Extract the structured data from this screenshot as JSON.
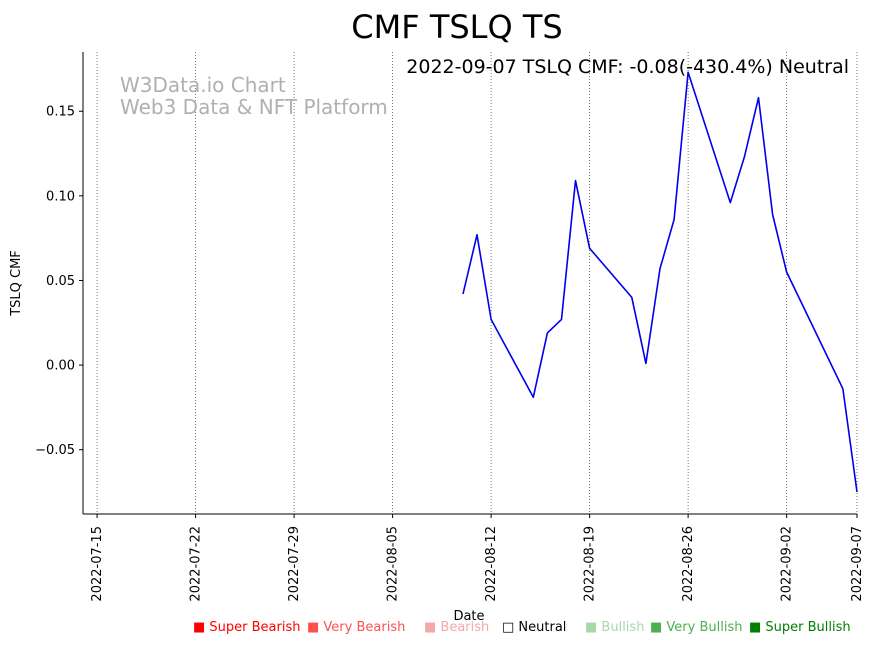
{
  "chart_data": {
    "type": "line",
    "title": "CMF TSLQ TS",
    "subtitle": "2022-09-07 TSLQ CMF: -0.08(-430.4%) Neutral",
    "watermark": [
      "W3Data.io Chart",
      "Web3 Data & NFT Platform"
    ],
    "xlabel": "Date",
    "ylabel": "TSLQ CMF",
    "x_range": [
      "2022-07-14",
      "2022-09-07"
    ],
    "ylim": [
      -0.088,
      0.185
    ],
    "x_ticks": [
      "2022-07-15",
      "2022-07-22",
      "2022-07-29",
      "2022-08-05",
      "2022-08-12",
      "2022-08-19",
      "2022-08-26",
      "2022-09-02",
      "2022-09-07"
    ],
    "y_ticks": [
      -0.05,
      0.0,
      0.05,
      0.1,
      0.15
    ],
    "y_tick_labels": [
      "−0.05",
      "0.00",
      "0.05",
      "0.10",
      "0.15"
    ],
    "grid": "vertical-dotted",
    "series": [
      {
        "name": "TSLQ CMF",
        "color": "#0000ee",
        "x": [
          "2022-08-10",
          "2022-08-11",
          "2022-08-12",
          "2022-08-15",
          "2022-08-16",
          "2022-08-17",
          "2022-08-18",
          "2022-08-19",
          "2022-08-22",
          "2022-08-23",
          "2022-08-24",
          "2022-08-25",
          "2022-08-26",
          "2022-08-29",
          "2022-08-30",
          "2022-08-31",
          "2022-09-01",
          "2022-09-02",
          "2022-09-06",
          "2022-09-07"
        ],
        "y": [
          0.042,
          0.077,
          0.027,
          -0.019,
          0.019,
          0.027,
          0.109,
          0.069,
          0.04,
          0.001,
          0.057,
          0.086,
          0.173,
          0.096,
          0.123,
          0.158,
          0.089,
          0.055,
          -0.014,
          -0.075
        ]
      }
    ],
    "legend": [
      {
        "label": "Super Bearish",
        "color": "#ff0000",
        "marker": "■"
      },
      {
        "label": "Very Bearish",
        "color": "#ff5050",
        "marker": "■"
      },
      {
        "label": "Bearish",
        "color": "#f4a8a8",
        "marker": "■"
      },
      {
        "label": "Neutral",
        "color": "#000000",
        "marker": "□"
      },
      {
        "label": "Bullish",
        "color": "#a8d8a8",
        "marker": "■"
      },
      {
        "label": "Very Bullish",
        "color": "#4caf50",
        "marker": "■"
      },
      {
        "label": "Super Bullish",
        "color": "#008000",
        "marker": "■"
      }
    ]
  }
}
